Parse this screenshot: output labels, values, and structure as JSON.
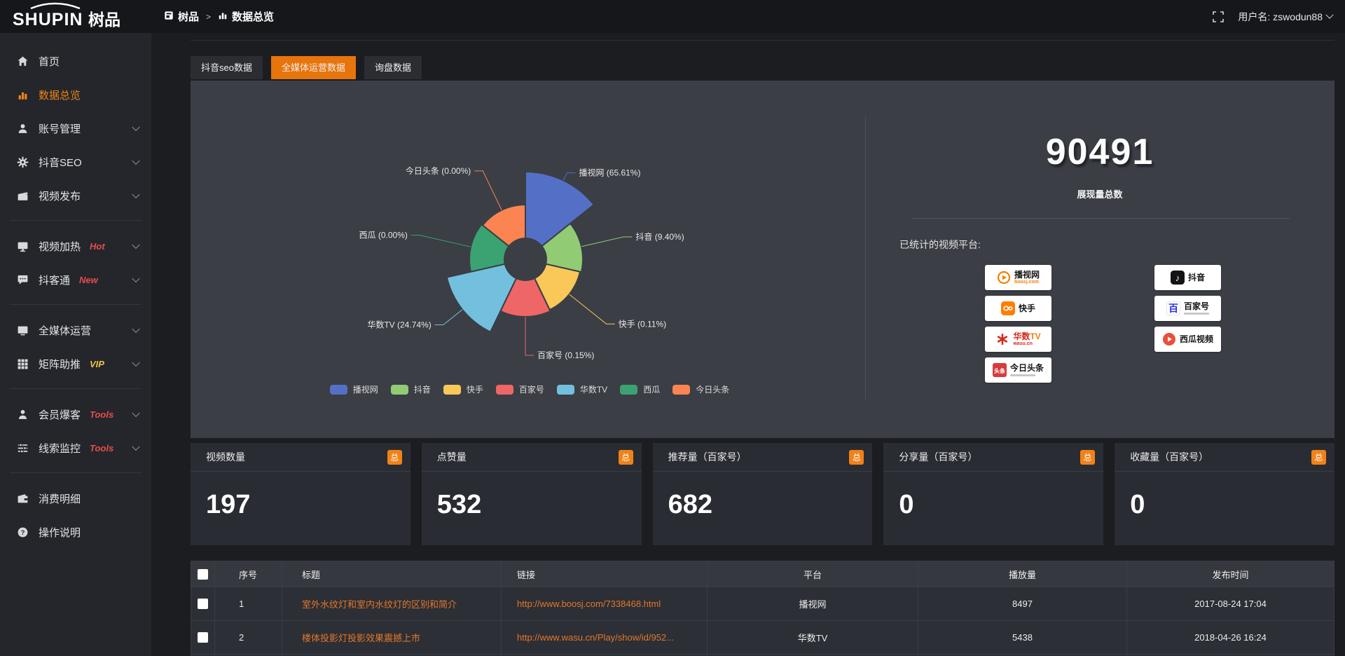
{
  "header": {
    "logo_text": "SHUPIN",
    "logo_suffix": "树品",
    "breadcrumb": [
      {
        "label": "树品",
        "icon": "app-icon"
      },
      {
        "label": "数据总览",
        "icon": "mini-bar-chart-icon"
      }
    ],
    "breadcrumb_sep": ">",
    "user_label": "用户名: zswodun88"
  },
  "sidebar": {
    "items": [
      {
        "label": "首页",
        "icon": "home-icon"
      },
      {
        "label": "数据总览",
        "icon": "bar-chart-icon",
        "active": true
      },
      {
        "label": "账号管理",
        "icon": "user-icon",
        "chevron": true
      },
      {
        "label": "抖音SEO",
        "icon": "gear-icon",
        "chevron": true
      },
      {
        "label": "视频发布",
        "icon": "video-icon",
        "chevron": true,
        "divider_after": true
      },
      {
        "label": "视频加热",
        "icon": "screen-icon",
        "badge": "Hot",
        "badge_color": "#e84c4c",
        "chevron": true
      },
      {
        "label": "抖客通",
        "icon": "chat-icon",
        "badge": "New",
        "badge_color": "#e84c4c",
        "chevron": true,
        "divider_after": true
      },
      {
        "label": "全媒体运营",
        "icon": "monitor-icon",
        "chevron": true
      },
      {
        "label": "矩阵助推",
        "icon": "grid-icon",
        "badge": "VIP",
        "badge_color": "#eec643",
        "chevron": true,
        "divider_after": true
      },
      {
        "label": "会员爆客",
        "icon": "member-icon",
        "badge": "Tools",
        "badge_color": "#e84c4c",
        "chevron": true
      },
      {
        "label": "线索监控",
        "icon": "sliders-icon",
        "badge": "Tools",
        "badge_color": "#e84c4c",
        "chevron": true,
        "divider_after": true
      },
      {
        "label": "消费明细",
        "icon": "wallet-icon"
      },
      {
        "label": "操作说明",
        "icon": "help-icon"
      }
    ]
  },
  "tabs": [
    {
      "label": "抖音seo数据"
    },
    {
      "label": "全媒体运营数据",
      "active": true
    },
    {
      "label": "询盘数据"
    }
  ],
  "chart_data": {
    "type": "pie",
    "subtype": "nightingale-rose",
    "start_angle_deg": 0,
    "clockwise": true,
    "inner_radius_px": 30,
    "slices": [
      {
        "name": "播视网",
        "percent": 65.61,
        "label": "播视网 (65.61%)",
        "color": "#5470c6",
        "outer_radius_px": 125,
        "line_len": 12
      },
      {
        "name": "抖音",
        "percent": 9.4,
        "label": "抖音 (9.40%)",
        "color": "#91cc75",
        "outer_radius_px": 82,
        "line_len": 62
      },
      {
        "name": "快手",
        "percent": 0.11,
        "label": "快手 (0.11%)",
        "color": "#fac858",
        "outer_radius_px": 80,
        "line_len": 68
      },
      {
        "name": "百家号",
        "percent": 0.15,
        "label": "百家号 (0.15%)",
        "color": "#ee6666",
        "outer_radius_px": 82,
        "line_len": 55
      },
      {
        "name": "华数TV",
        "percent": 24.74,
        "label": "华数TV (24.74%)",
        "color": "#73c0de",
        "outer_radius_px": 115,
        "line_len": 35
      },
      {
        "name": "西瓜",
        "percent": 0.0,
        "label": "西瓜 (0.00%)",
        "color": "#3ba272",
        "outer_radius_px": 80,
        "line_len": 75
      },
      {
        "name": "今日头条",
        "percent": 0.0,
        "label": "今日头条 (0.00%)",
        "color": "#fc8452",
        "outer_radius_px": 78,
        "line_len": 62
      }
    ],
    "legend": [
      "播视网",
      "抖音",
      "快手",
      "百家号",
      "华数TV",
      "西瓜",
      "今日头条"
    ],
    "legend_position": "bottom"
  },
  "summary": {
    "total": "90491",
    "caption": "展现量总数",
    "platforms_label": "已统计的视频平台:",
    "platforms_left": [
      {
        "name": "播视网",
        "sub": "boosj.com",
        "logo": "boosj-logo"
      },
      {
        "name": "快手",
        "logo": "kuaishou-logo"
      },
      {
        "name": "华数TV",
        "sub": "wasu.cn",
        "logo": "wasu-logo"
      },
      {
        "name": "今日头条",
        "logo": "toutiao-logo"
      }
    ],
    "platforms_right": [
      {
        "name": "抖音",
        "logo": "douyin-logo"
      },
      {
        "name": "百家号",
        "logo": "baijiahao-logo"
      },
      {
        "name": "西瓜视频",
        "logo": "xigua-logo"
      }
    ]
  },
  "stat_cards": [
    {
      "label": "视频数量",
      "badge": "总",
      "value": "197"
    },
    {
      "label": "点赞量",
      "badge": "总",
      "value": "532"
    },
    {
      "label": "推荐量（百家号）",
      "badge": "总",
      "value": "682"
    },
    {
      "label": "分享量（百家号）",
      "badge": "总",
      "value": "0"
    },
    {
      "label": "收藏量（百家号）",
      "badge": "总",
      "value": "0"
    }
  ],
  "table": {
    "columns": [
      "序号",
      "标题",
      "链接",
      "平台",
      "播放量",
      "发布时间"
    ],
    "rows": [
      {
        "no": "1",
        "title": "室外水纹灯和室内水纹灯的区别和简介",
        "link": "http://www.boosj.com/7338468.html",
        "platform": "播视网",
        "views": "8497",
        "time": "2017-08-24 17:04"
      },
      {
        "no": "2",
        "title": "楼体投影灯投影效果震撼上市",
        "link": "http://www.wasu.cn/Play/show/id/952...",
        "platform": "华数TV",
        "views": "5438",
        "time": "2018-04-26 16:24"
      }
    ]
  },
  "colors": {
    "accent_orange": "#e8740c",
    "badge_orange": "#f08219",
    "link_orange": "#e4762c",
    "hot_red": "#e84c4c",
    "vip_yellow": "#eec643",
    "panel_bg": "#3b3e45"
  }
}
